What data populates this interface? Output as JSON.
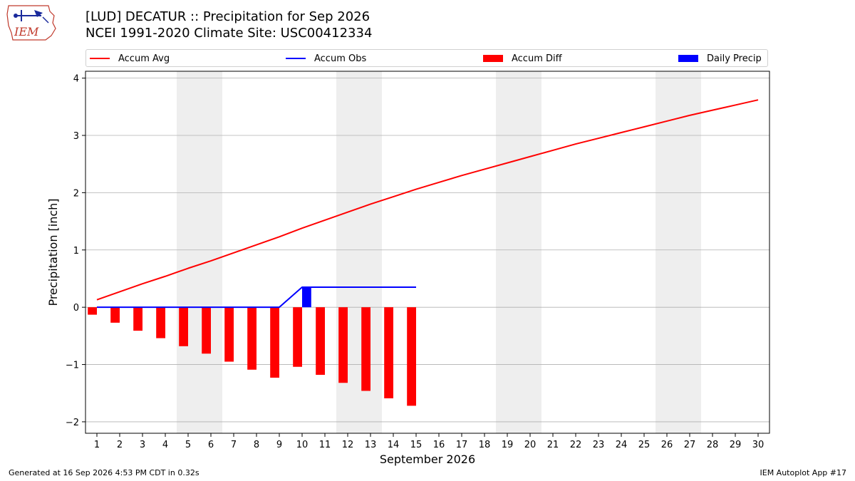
{
  "logo": {
    "text": "IEM",
    "icon": "iem-logo-icon"
  },
  "header": {
    "title_line1": "[LUD] DECATUR :: Precipitation for Sep 2026",
    "title_line2": "NCEI 1991-2020 Climate Site: USC00412334"
  },
  "legend": {
    "items": [
      {
        "label": "Accum Avg",
        "kind": "line",
        "color": "#ff0000"
      },
      {
        "label": "Accum Obs",
        "kind": "line",
        "color": "#0000ff"
      },
      {
        "label": "Accum Diff",
        "kind": "box",
        "color": "#ff0000"
      },
      {
        "label": "Daily Precip",
        "kind": "box",
        "color": "#0000ff"
      }
    ]
  },
  "footer": {
    "generated": "Generated at 16 Sep 2026 4:53 PM CDT in 0.32s",
    "app": "IEM Autoplot App #17"
  },
  "chart_data": {
    "type": "bar",
    "xlabel": "September 2026",
    "ylabel": "Precipitation [inch]",
    "xlim": [
      0.5,
      30.5
    ],
    "ylim": [
      -2.2,
      4.12
    ],
    "yticks": [
      -2,
      -1,
      0,
      1,
      2,
      3,
      4
    ],
    "xticks": [
      1,
      2,
      3,
      4,
      5,
      6,
      7,
      8,
      9,
      10,
      11,
      12,
      13,
      14,
      15,
      16,
      17,
      18,
      19,
      20,
      21,
      22,
      23,
      24,
      25,
      26,
      27,
      28,
      29,
      30
    ],
    "grid": "horizontal",
    "legend_position": "top",
    "weekend_shading": [
      [
        4.5,
        6.5
      ],
      [
        11.5,
        13.5
      ],
      [
        18.5,
        20.5
      ],
      [
        25.5,
        27.5
      ]
    ],
    "weekend_color": "#eeeeee",
    "series": [
      {
        "name": "Accum Avg",
        "type": "line",
        "color": "#ff0000",
        "x": [
          1,
          2,
          3,
          4,
          5,
          6,
          7,
          8,
          9,
          10,
          11,
          12,
          13,
          14,
          15,
          16,
          17,
          18,
          19,
          20,
          21,
          22,
          23,
          24,
          25,
          26,
          27,
          28,
          29,
          30
        ],
        "values": [
          0.13,
          0.27,
          0.41,
          0.54,
          0.68,
          0.81,
          0.95,
          1.09,
          1.23,
          1.38,
          1.52,
          1.66,
          1.8,
          1.93,
          2.06,
          2.18,
          2.3,
          2.41,
          2.52,
          2.63,
          2.74,
          2.85,
          2.95,
          3.05,
          3.15,
          3.25,
          3.35,
          3.44,
          3.53,
          3.62
        ]
      },
      {
        "name": "Accum Obs",
        "type": "line",
        "color": "#0000ff",
        "x": [
          1,
          2,
          3,
          4,
          5,
          6,
          7,
          8,
          9,
          10,
          11,
          12,
          13,
          14,
          15
        ],
        "values": [
          0,
          0,
          0,
          0,
          0,
          0,
          0,
          0,
          0,
          0.35,
          0.35,
          0.35,
          0.35,
          0.35,
          0.35
        ]
      },
      {
        "name": "Accum Diff",
        "type": "bar",
        "color": "#ff0000",
        "offset": -0.2,
        "x": [
          1,
          2,
          3,
          4,
          5,
          6,
          7,
          8,
          9,
          10,
          11,
          12,
          13,
          14,
          15
        ],
        "values": [
          -0.13,
          -0.27,
          -0.41,
          -0.54,
          -0.68,
          -0.81,
          -0.95,
          -1.09,
          -1.23,
          -1.04,
          -1.18,
          -1.32,
          -1.46,
          -1.59,
          -1.72
        ]
      },
      {
        "name": "Daily Precip",
        "type": "bar",
        "color": "#0000ff",
        "offset": 0.2,
        "x": [
          1,
          2,
          3,
          4,
          5,
          6,
          7,
          8,
          9,
          10,
          11,
          12,
          13,
          14,
          15
        ],
        "values": [
          0,
          0,
          0,
          0,
          0,
          0,
          0,
          0,
          0,
          0.35,
          0,
          0,
          0,
          0,
          0
        ]
      }
    ]
  }
}
